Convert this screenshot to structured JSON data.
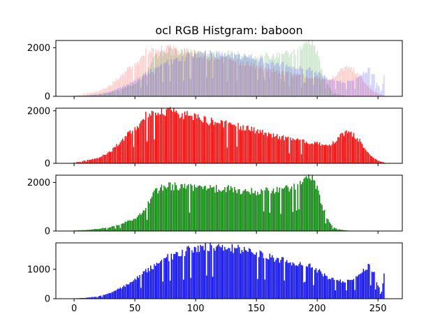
{
  "chart_data": {
    "title": "ocl RGB Histgram: baboon",
    "xlim": [
      -15,
      270
    ],
    "x_ticks": [
      0,
      50,
      100,
      150,
      200,
      250
    ],
    "bins": 256,
    "grid": false,
    "channels": {
      "red": {
        "color": "#ff0000",
        "profile": [
          [
            0,
            30
          ],
          [
            5,
            60
          ],
          [
            10,
            120
          ],
          [
            20,
            200
          ],
          [
            30,
            450
          ],
          [
            40,
            900
          ],
          [
            50,
            1350
          ],
          [
            55,
            1600
          ],
          [
            60,
            1850
          ],
          [
            65,
            1950
          ],
          [
            70,
            1990
          ],
          [
            75,
            2000
          ],
          [
            80,
            1950
          ],
          [
            90,
            1850
          ],
          [
            100,
            1720
          ],
          [
            110,
            1620
          ],
          [
            120,
            1530
          ],
          [
            130,
            1450
          ],
          [
            140,
            1360
          ],
          [
            150,
            1250
          ],
          [
            160,
            1120
          ],
          [
            170,
            1000
          ],
          [
            180,
            900
          ],
          [
            190,
            820
          ],
          [
            200,
            760
          ],
          [
            205,
            700
          ],
          [
            210,
            680
          ],
          [
            215,
            820
          ],
          [
            220,
            1100
          ],
          [
            225,
            1200
          ],
          [
            230,
            1100
          ],
          [
            235,
            850
          ],
          [
            240,
            500
          ],
          [
            245,
            250
          ],
          [
            250,
            100
          ],
          [
            255,
            30
          ]
        ]
      },
      "green": {
        "color": "#008000",
        "profile": [
          [
            0,
            20
          ],
          [
            10,
            40
          ],
          [
            20,
            90
          ],
          [
            30,
            160
          ],
          [
            40,
            320
          ],
          [
            50,
            520
          ],
          [
            55,
            700
          ],
          [
            60,
            1050
          ],
          [
            65,
            1500
          ],
          [
            70,
            1750
          ],
          [
            75,
            1860
          ],
          [
            80,
            1850
          ],
          [
            90,
            1800
          ],
          [
            100,
            1780
          ],
          [
            110,
            1760
          ],
          [
            120,
            1750
          ],
          [
            130,
            1720
          ],
          [
            140,
            1650
          ],
          [
            150,
            1620
          ],
          [
            160,
            1650
          ],
          [
            170,
            1700
          ],
          [
            180,
            1800
          ],
          [
            185,
            1950
          ],
          [
            190,
            2100
          ],
          [
            193,
            2180
          ],
          [
            196,
            2120
          ],
          [
            200,
            1750
          ],
          [
            205,
            900
          ],
          [
            210,
            350
          ],
          [
            215,
            120
          ],
          [
            220,
            50
          ],
          [
            225,
            20
          ],
          [
            230,
            8
          ],
          [
            255,
            0
          ]
        ]
      },
      "blue": {
        "color": "#0000ff",
        "profile": [
          [
            0,
            10
          ],
          [
            10,
            30
          ],
          [
            20,
            80
          ],
          [
            30,
            200
          ],
          [
            40,
            400
          ],
          [
            50,
            650
          ],
          [
            60,
            950
          ],
          [
            70,
            1250
          ],
          [
            80,
            1450
          ],
          [
            90,
            1600
          ],
          [
            100,
            1700
          ],
          [
            110,
            1760
          ],
          [
            120,
            1790
          ],
          [
            130,
            1700
          ],
          [
            140,
            1640
          ],
          [
            150,
            1580
          ],
          [
            160,
            1450
          ],
          [
            170,
            1320
          ],
          [
            180,
            1250
          ],
          [
            190,
            1180
          ],
          [
            200,
            980
          ],
          [
            210,
            700
          ],
          [
            220,
            600
          ],
          [
            230,
            620
          ],
          [
            235,
            850
          ],
          [
            240,
            1080
          ],
          [
            243,
            1100
          ],
          [
            246,
            950
          ],
          [
            250,
            500
          ],
          [
            253,
            250
          ],
          [
            255,
            900
          ]
        ]
      }
    },
    "panels": [
      {
        "type": "bar",
        "series": [
          "red",
          "green",
          "blue"
        ],
        "alpha": 0.2,
        "yticks": [
          0,
          2000
        ],
        "ylim": [
          0,
          2300
        ]
      },
      {
        "type": "bar",
        "series": [
          "red"
        ],
        "alpha": 1,
        "yticks": [
          0,
          2000
        ],
        "ylim": [
          0,
          2100
        ]
      },
      {
        "type": "bar",
        "series": [
          "green"
        ],
        "alpha": 1,
        "yticks": [
          0,
          2000
        ],
        "ylim": [
          0,
          2300
        ]
      },
      {
        "type": "bar",
        "series": [
          "blue"
        ],
        "alpha": 1,
        "yticks": [
          0,
          1000
        ],
        "ylim": [
          0,
          1900
        ]
      }
    ]
  }
}
